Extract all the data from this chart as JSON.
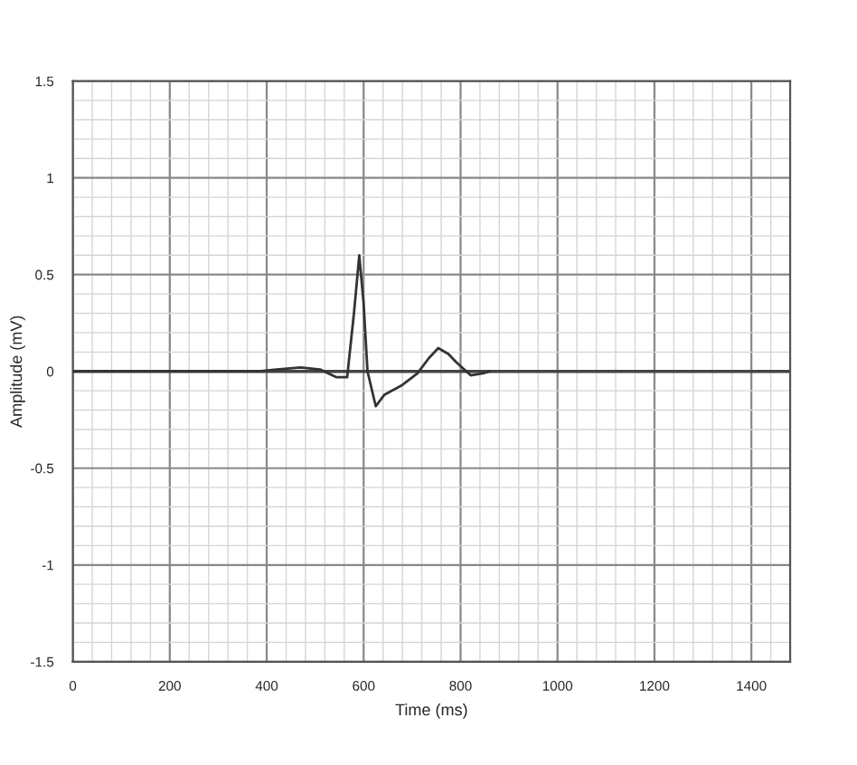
{
  "chart_data": {
    "type": "line",
    "xlabel": "Time (ms)",
    "ylabel": "Amplitude (mV)",
    "series": [
      {
        "color": "#333333",
        "x": [
          0,
          384,
          420,
          470,
          510,
          544,
          566,
          580,
          591,
          600,
          608,
          625,
          643,
          680,
          711,
          735,
          754,
          775,
          790,
          821,
          846,
          860
        ],
        "values": [
          0,
          0,
          0.01,
          0.02,
          0.01,
          -0.03,
          -0.03,
          0.3,
          0.6,
          0.35,
          0,
          -0.18,
          -0.12,
          -0.07,
          -0.01,
          0.07,
          0.12,
          0.09,
          0.05,
          -0.02,
          -0.01,
          0
        ]
      }
    ],
    "xlim": [
      0,
      1480
    ],
    "xticks": [
      0,
      200,
      400,
      600,
      800,
      1000,
      1200,
      1400
    ],
    "ylim": [
      -1.5,
      1.5
    ],
    "yticks": [
      -1.5,
      -1,
      -0.5,
      0,
      0.5,
      1,
      1.5
    ],
    "ref_lines": [
      {
        "axis": "y",
        "value": 0,
        "color": "#444444"
      }
    ],
    "grid": true,
    "legend": false,
    "marker": "none",
    "line_style": "solid"
  }
}
